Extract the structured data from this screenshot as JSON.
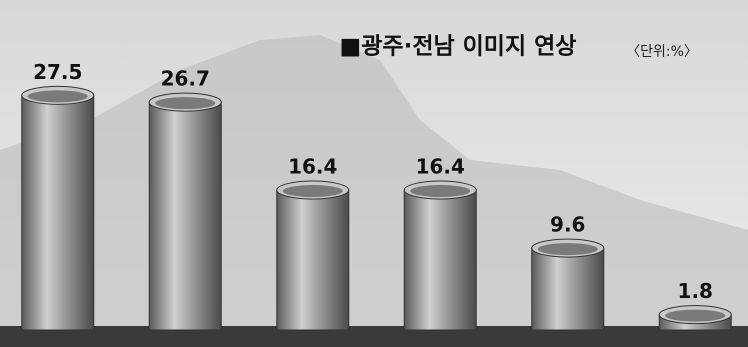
{
  "chart_data": {
    "type": "bar",
    "title": "■광주·전남 이미지 연상",
    "unit": "〈단위:%〉",
    "categories": [
      null,
      null,
      null,
      null,
      null,
      null
    ],
    "values": [
      27.5,
      26.7,
      16.4,
      16.4,
      9.6,
      1.8
    ],
    "color": "#8a8a8a",
    "ylim": [
      0,
      30
    ]
  }
}
